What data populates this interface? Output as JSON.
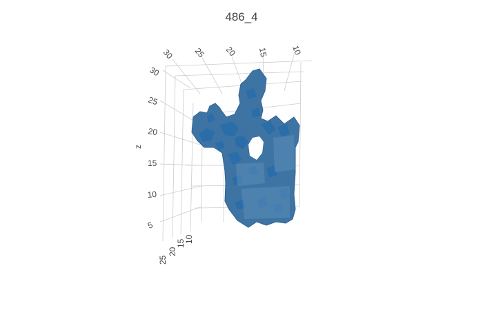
{
  "chart_data": {
    "type": "mesh3d",
    "title": "486_4",
    "mesh_color": "#1f77b4",
    "axis_line_color": "#bbbbbb",
    "axes": {
      "x": {
        "label": "",
        "ticks": [
          "30",
          "25",
          "20",
          "15",
          "10"
        ]
      },
      "y": {
        "label": "",
        "ticks": [
          "25",
          "20",
          "15",
          "10"
        ]
      },
      "z": {
        "label": "z",
        "ticks": [
          "30",
          "25",
          "20",
          "15",
          "10",
          "5"
        ]
      }
    },
    "grid": true
  }
}
